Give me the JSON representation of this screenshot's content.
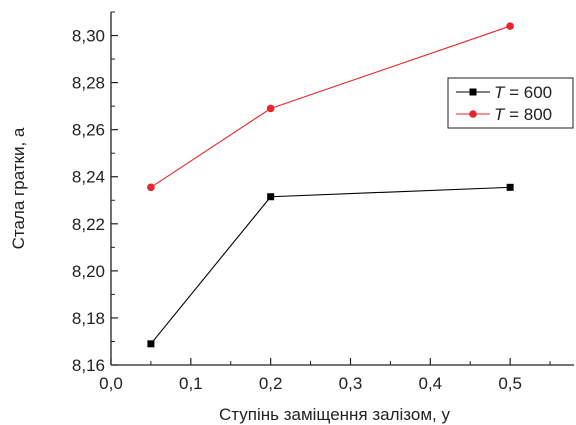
{
  "chart_data": {
    "type": "line",
    "title": "",
    "xlabel": "Ступінь заміщення залізом, y",
    "ylabel": "Стала гратки, a",
    "xlim": [
      0.0,
      0.58
    ],
    "ylim": [
      8.16,
      8.31
    ],
    "xticks": [
      "0,0",
      "0,1",
      "0,2",
      "0,3",
      "0,4",
      "0,5"
    ],
    "xtick_values": [
      0.0,
      0.1,
      0.2,
      0.3,
      0.4,
      0.5
    ],
    "yticks": [
      "8,16",
      "8,18",
      "8,20",
      "8,22",
      "8,24",
      "8,26",
      "8,28",
      "8,30"
    ],
    "ytick_values": [
      8.16,
      8.18,
      8.2,
      8.22,
      8.24,
      8.26,
      8.28,
      8.3
    ],
    "grid": false,
    "legend_position": "top-right",
    "series": [
      {
        "name": "T = 600",
        "legend_var": "T",
        "legend_rest": " = 600",
        "marker": "square",
        "color": "#000000",
        "x": [
          0.05,
          0.2,
          0.5
        ],
        "y": [
          8.169,
          8.2315,
          8.2355
        ]
      },
      {
        "name": "T = 800",
        "legend_var": "T",
        "legend_rest": " = 800",
        "marker": "circle",
        "color": "#e8262b",
        "x": [
          0.05,
          0.2,
          0.5
        ],
        "y": [
          8.2355,
          8.269,
          8.304
        ]
      }
    ]
  }
}
